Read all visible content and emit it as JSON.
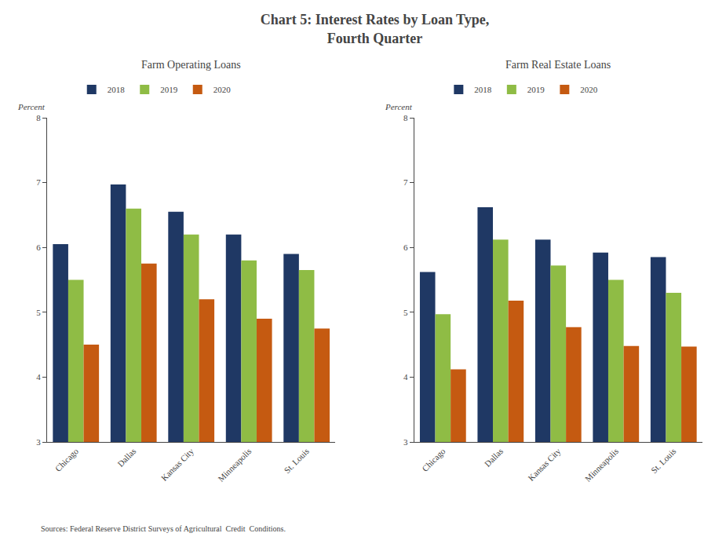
{
  "title": "Chart 5: Interest Rates by Loan Type,\nFourth Quarter",
  "annotations": [
    "Sources: Federal Reserve District Surveys of Agricultural  Credit  Conditions."
  ],
  "chart_data": [
    {
      "type": "bar",
      "subtitle": "Farm Operating Loans",
      "ylabel": "Percent",
      "categories": [
        "Chicago",
        "Dallas",
        "Kansas City",
        "Minneapolis",
        "St. Louis"
      ],
      "series": [
        {
          "name": "2018",
          "color": "#1f3864",
          "values": [
            6.05,
            6.97,
            6.55,
            6.2,
            5.9
          ]
        },
        {
          "name": "2019",
          "color": "#8fbc45",
          "values": [
            5.5,
            6.6,
            6.2,
            5.8,
            5.65
          ]
        },
        {
          "name": "2020",
          "color": "#c55a11",
          "values": [
            4.5,
            5.75,
            5.2,
            4.9,
            4.75
          ]
        }
      ],
      "ylim": [
        3,
        8
      ],
      "yticks": [
        3,
        4,
        5,
        6,
        7,
        8
      ],
      "grid": false,
      "legend": "upper left"
    },
    {
      "type": "bar",
      "subtitle": "Farm Real Estate Loans",
      "ylabel": "Percent",
      "categories": [
        "Chicago",
        "Dallas",
        "Kansas City",
        "Minneapolis",
        "St. Louis"
      ],
      "series": [
        {
          "name": "2018",
          "color": "#1f3864",
          "values": [
            5.62,
            6.62,
            6.12,
            5.92,
            5.85
          ]
        },
        {
          "name": "2019",
          "color": "#8fbc45",
          "values": [
            4.97,
            6.12,
            5.72,
            5.5,
            5.3
          ]
        },
        {
          "name": "2020",
          "color": "#c55a11",
          "values": [
            4.12,
            5.18,
            4.77,
            4.48,
            4.47
          ]
        }
      ],
      "ylim": [
        3,
        8
      ],
      "yticks": [
        3,
        4,
        5,
        6,
        7,
        8
      ],
      "grid": false,
      "legend": "upper left"
    }
  ]
}
